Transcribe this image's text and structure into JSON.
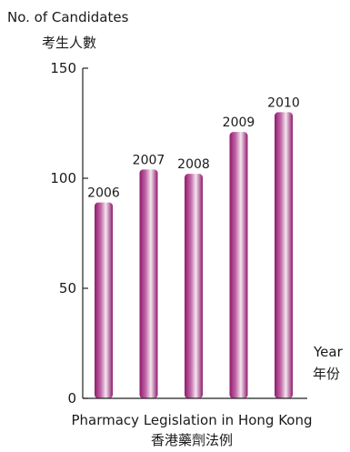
{
  "chart_data": {
    "type": "bar",
    "categories": [
      "2006",
      "2007",
      "2008",
      "2009",
      "2010"
    ],
    "values": [
      89,
      104,
      102,
      121,
      130
    ],
    "ylabel_en": "No. of Candidates",
    "ylabel_zh": "考生人數",
    "year_label_en": "Year",
    "year_label_zh": "年份",
    "xlabel_en": "Pharmacy Legislation in Hong Kong",
    "xlabel_zh": "香港藥劑法例",
    "ylim": [
      0,
      150
    ],
    "yticks": [
      0,
      50,
      100,
      150
    ],
    "grid": false,
    "colors": {
      "bar_dark": "#8e1a6e",
      "bar_mid": "#c46aa8",
      "bar_light": "#f4e6ef"
    }
  }
}
